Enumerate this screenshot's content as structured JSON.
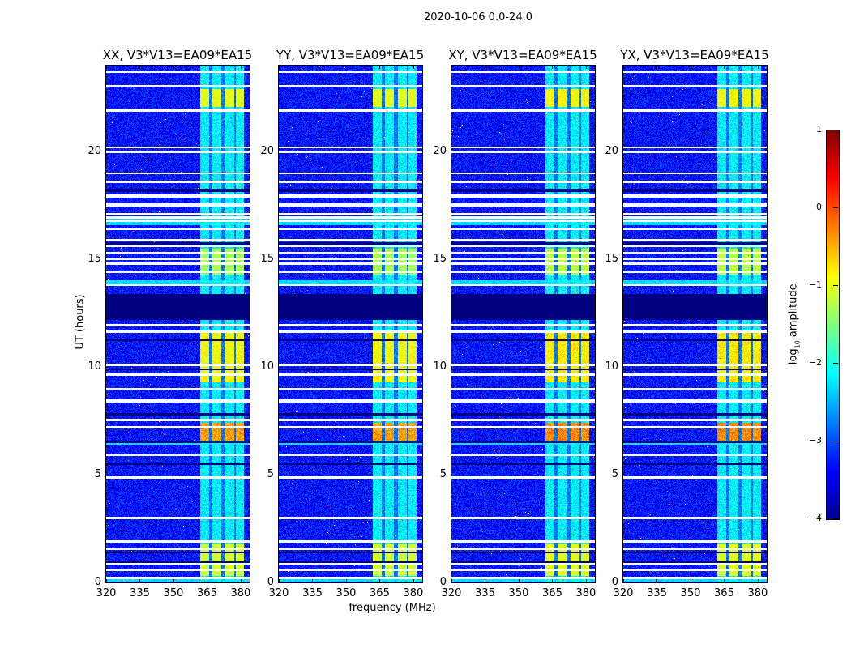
{
  "chart_data": {
    "type": "heatmap",
    "title": "2020-10-06 0.0-24.0",
    "xlabel": "frequency (MHz)",
    "ylabel": "UT (hours)",
    "xlim": [
      320,
      384
    ],
    "ylim": [
      0,
      24
    ],
    "xticks": [
      "320",
      "335",
      "350",
      "365",
      "380"
    ],
    "xtick_values": [
      320,
      335,
      350,
      365,
      380
    ],
    "yticks": [
      "0",
      "5",
      "10",
      "15",
      "20"
    ],
    "ytick_values": [
      0,
      5,
      10,
      15,
      20
    ],
    "panels": [
      {
        "title": "XX, V3*V13=EA09*EA15",
        "seed": 11
      },
      {
        "title": "YY, V3*V13=EA09*EA15",
        "seed": 23
      },
      {
        "title": "XY, V3*V13=EA09*EA15",
        "seed": 37
      },
      {
        "title": "YX, V3*V13=EA09*EA15",
        "seed": 51
      }
    ],
    "colorbar": {
      "label": "log10 amplitude",
      "label_main": "log",
      "label_sub": "10",
      "label_rest": " amplitude",
      "range": [
        -4,
        1
      ],
      "ticks": [
        "1",
        "0",
        "−1",
        "−2",
        "−3",
        "−4"
      ],
      "tick_values": [
        1,
        0,
        -1,
        -2,
        -3,
        -4
      ],
      "colormap": "jet"
    },
    "background_log_amplitude": -3.3,
    "band_log_amplitude": -2.2,
    "signal_subbands_mhz": [
      [
        362,
        366
      ],
      [
        367.5,
        371.5
      ],
      [
        373,
        377
      ],
      [
        378,
        381.5
      ]
    ],
    "active_intervals": [
      {
        "hours": [
          22.1,
          22.9
        ],
        "log_amplitude": -1.0
      },
      {
        "hours": [
          14.3,
          15.5
        ],
        "log_amplitude": -1.3
      },
      {
        "hours": [
          9.3,
          11.7
        ],
        "log_amplitude": -0.9
      },
      {
        "hours": [
          6.6,
          7.4
        ],
        "log_amplitude": -0.4
      },
      {
        "hours": [
          0.3,
          1.8
        ],
        "log_amplitude": -1.1
      }
    ],
    "broadband_rows_hours": [
      [
        16.6,
        16.9
      ],
      [
        13.8,
        14.05
      ],
      [
        6.4,
        6.55
      ],
      [
        0.05,
        0.15
      ]
    ],
    "flagged_hours": [
      23.7,
      23.07,
      [
        21.85,
        22.0
      ],
      20.2,
      20.0,
      19.0,
      18.6,
      [
        17.85,
        18.0
      ],
      [
        17.45,
        17.6
      ],
      17.1,
      16.95,
      16.8,
      16.4,
      [
        15.85,
        15.95
      ],
      15.6,
      15.3,
      15.0,
      14.8,
      14.4,
      [
        13.75,
        13.85
      ],
      11.95,
      11.65,
      10.1,
      9.65,
      9.0,
      8.46,
      8.4,
      [
        7.5,
        7.6
      ],
      7.2,
      5.9,
      4.87,
      [
        2.95,
        3.05
      ],
      [
        1.85,
        1.95
      ],
      1.55,
      0.86,
      0.56,
      0.2
    ],
    "low_rows_hours": [
      [
        18.15,
        18.3
      ],
      15.75,
      [
        12.2,
        13.4
      ],
      11.25,
      9.9,
      7.8,
      6.5,
      5.5,
      1.4,
      0.95
    ]
  }
}
